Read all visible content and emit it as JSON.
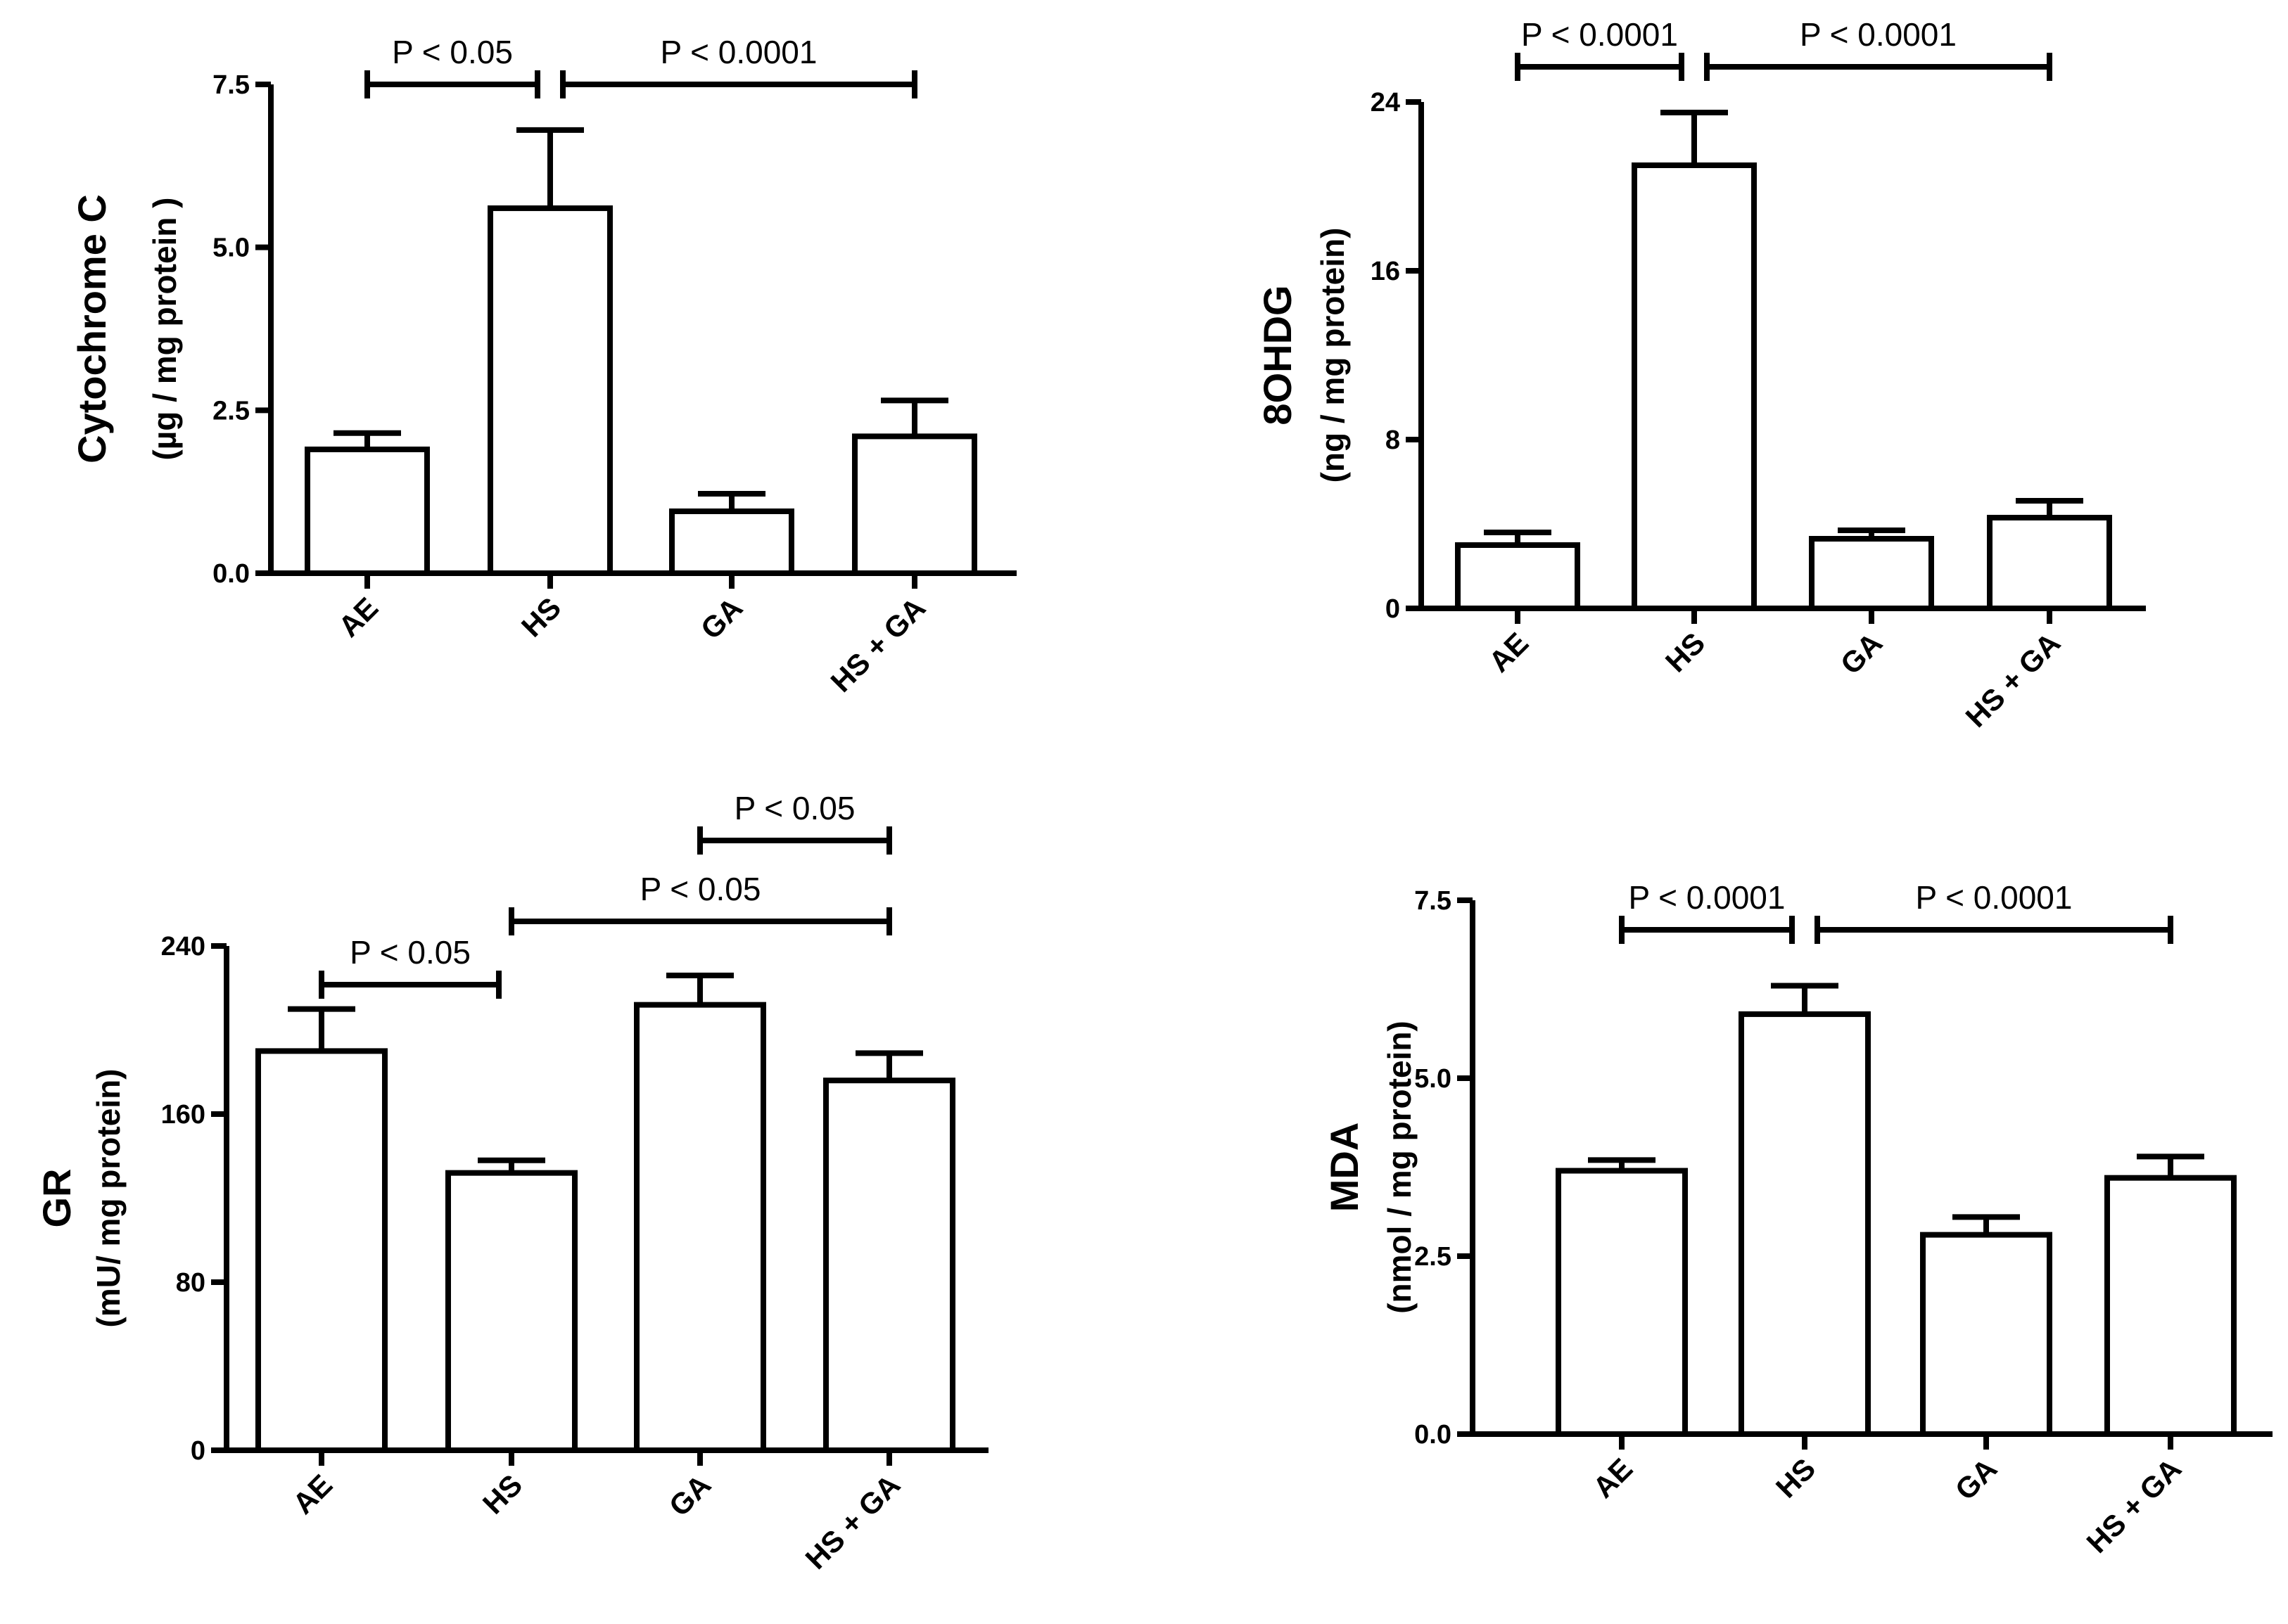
{
  "chart_data": [
    {
      "id": "cytochrome",
      "type": "bar",
      "ylabel": "Cytochrome C",
      "yunit": "(µg / mg protein )",
      "categories": [
        "AE",
        "HS",
        "GA",
        "HS + GA"
      ],
      "values": [
        1.9,
        5.6,
        0.95,
        2.1
      ],
      "errors": [
        0.25,
        1.2,
        0.27,
        0.55
      ],
      "ylim": [
        0,
        7.5
      ],
      "yticks": [
        0,
        2.5,
        5,
        7.5
      ],
      "ytick_labels": [
        "0.0",
        "2.5",
        "5.0",
        "7.5"
      ],
      "significance": [
        {
          "from": 0,
          "to": 1,
          "label": "P < 0.05",
          "level": 0
        },
        {
          "from": 1,
          "to": 3,
          "label": "P < 0.0001",
          "level": 0
        }
      ]
    },
    {
      "id": "ohdg",
      "type": "bar",
      "ylabel": "8OHDG",
      "yunit": "(ng / mg protein)",
      "categories": [
        "AE",
        "HS",
        "GA",
        "HS + GA"
      ],
      "values": [
        3.0,
        21.0,
        3.3,
        4.3
      ],
      "errors": [
        0.6,
        2.5,
        0.4,
        0.8
      ],
      "ylim": [
        0,
        24
      ],
      "yticks": [
        0,
        8,
        16,
        24
      ],
      "ytick_labels": [
        "0",
        "8",
        "16",
        "24"
      ],
      "significance": [
        {
          "from": 0,
          "to": 1,
          "label": "P < 0.0001",
          "level": 0
        },
        {
          "from": 1,
          "to": 3,
          "label": "P < 0.0001",
          "level": 0
        }
      ]
    },
    {
      "id": "gr",
      "type": "bar",
      "ylabel": "GR",
      "yunit": "(mU/ mg protein)",
      "categories": [
        "AE",
        "HS",
        "GA",
        "HS + GA"
      ],
      "values": [
        190,
        132,
        212,
        176
      ],
      "errors": [
        20,
        6,
        14,
        13
      ],
      "ylim": [
        0,
        240
      ],
      "yticks": [
        0,
        80,
        160,
        240
      ],
      "ytick_labels": [
        "0",
        "80",
        "160",
        "240"
      ],
      "significance": [
        {
          "from": 0,
          "to": 1,
          "label": "P < 0.05",
          "level": 0
        },
        {
          "from": 1,
          "to": 3,
          "label": "P < 0.05",
          "level": 1
        },
        {
          "from": 2,
          "to": 3,
          "label": "P < 0.05",
          "level": 2
        }
      ]
    },
    {
      "id": "mda",
      "type": "bar",
      "ylabel": "MDA",
      "yunit": "(nmol / mg protein)",
      "categories": [
        "AE",
        "HS",
        "GA",
        "HS + GA"
      ],
      "values": [
        3.7,
        5.9,
        2.8,
        3.6
      ],
      "errors": [
        0.15,
        0.4,
        0.25,
        0.3
      ],
      "ylim": [
        0,
        7.5
      ],
      "yticks": [
        0,
        2.5,
        5,
        7.5
      ],
      "ytick_labels": [
        "0.0",
        "2.5",
        "5.0",
        "7.5"
      ],
      "significance": [
        {
          "from": 0,
          "to": 1,
          "label": "P < 0.0001",
          "level": 0
        },
        {
          "from": 1,
          "to": 3,
          "label": "P < 0.0001",
          "level": 0
        }
      ]
    }
  ]
}
